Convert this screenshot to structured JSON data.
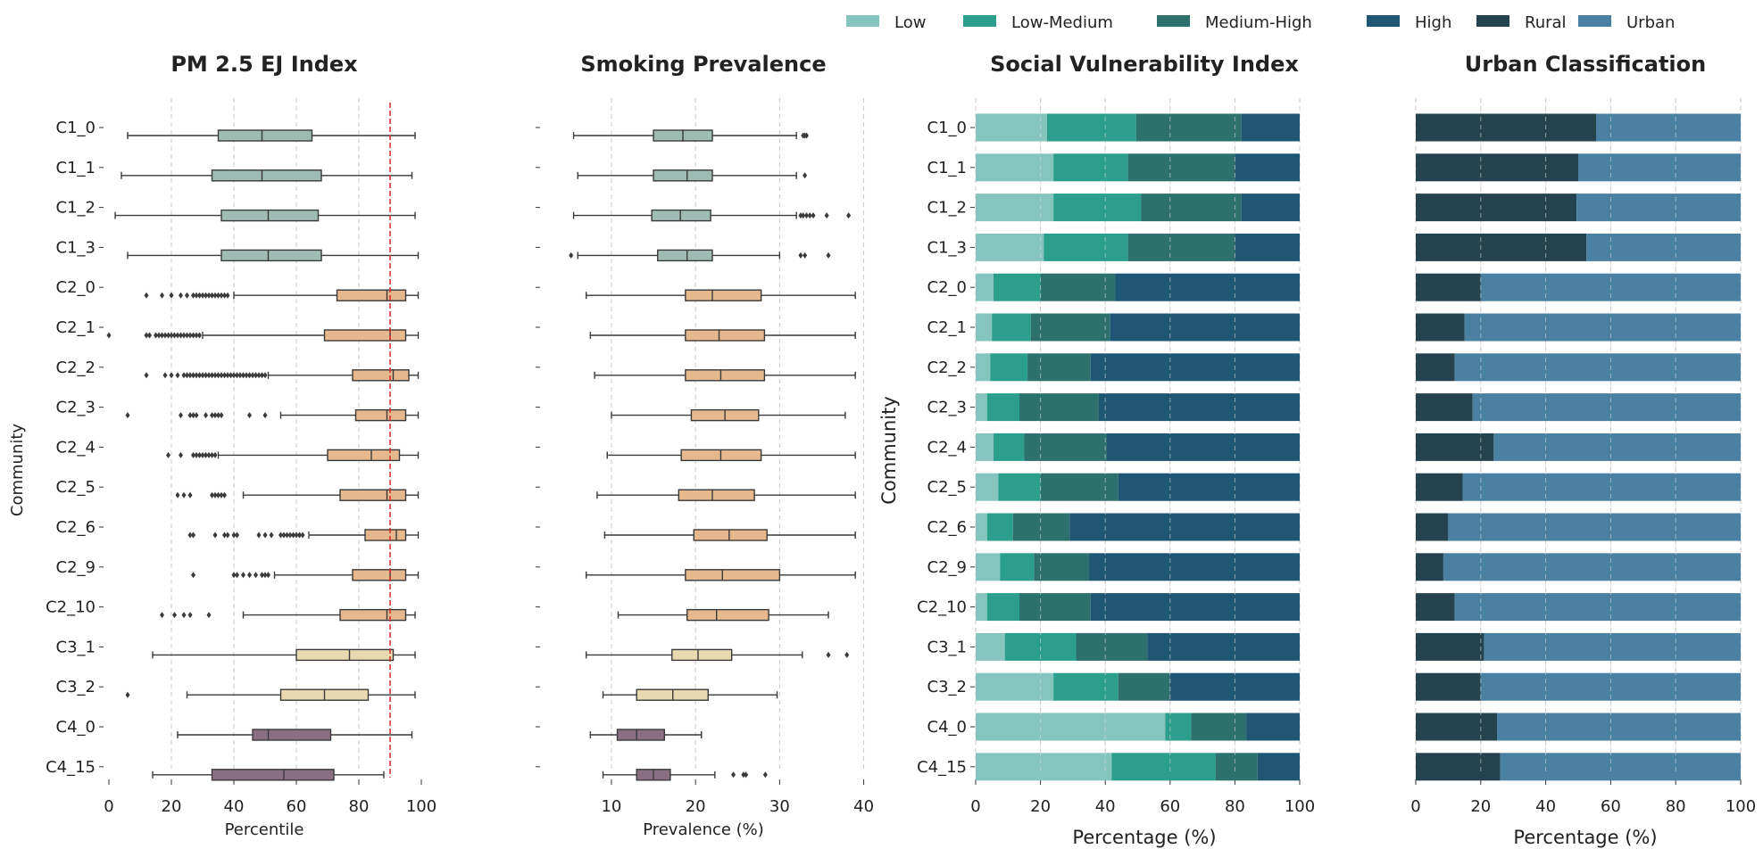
{
  "chart_data": [
    {
      "type": "boxplot",
      "title": "PM 2.5 EJ Index",
      "xlabel": "Percentile",
      "ylabel": "Community",
      "xlim": [
        0,
        100
      ],
      "xticks": [
        0,
        20,
        40,
        60,
        80,
        100
      ],
      "reference_line": 90,
      "categories": [
        "C1_0",
        "C1_1",
        "C1_2",
        "C1_3",
        "C2_0",
        "C2_1",
        "C2_2",
        "C2_3",
        "C2_4",
        "C2_5",
        "C2_6",
        "C2_9",
        "C2_10",
        "C3_1",
        "C3_2",
        "C4_0",
        "C4_15"
      ],
      "boxes": [
        {
          "min": 6,
          "q1": 35,
          "median": 49,
          "q3": 65,
          "max": 98,
          "color": "#9fbcb4",
          "outliers": []
        },
        {
          "min": 4,
          "q1": 33,
          "median": 49,
          "q3": 68,
          "max": 97,
          "color": "#9fbcb4",
          "outliers": []
        },
        {
          "min": 2,
          "q1": 36,
          "median": 51,
          "q3": 67,
          "max": 98,
          "color": "#9fbcb4",
          "outliers": []
        },
        {
          "min": 6,
          "q1": 36,
          "median": 51,
          "q3": 68,
          "max": 99,
          "color": "#9fbcb4",
          "outliers": []
        },
        {
          "min": 40,
          "q1": 73,
          "median": 89,
          "q3": 95,
          "max": 99,
          "color": "#e6b88d",
          "outliers": [
            12,
            17,
            20,
            23,
            25,
            27,
            28,
            29,
            30,
            31,
            32,
            33,
            34,
            35,
            36,
            37,
            38
          ]
        },
        {
          "min": 30,
          "q1": 69,
          "median": 90,
          "q3": 95,
          "max": 99,
          "color": "#e6b88d",
          "outliers": [
            0,
            12,
            13,
            15,
            16,
            17,
            18,
            19,
            20,
            21,
            22,
            23,
            24,
            25,
            26,
            27,
            28,
            29
          ]
        },
        {
          "min": 51,
          "q1": 78,
          "median": 91,
          "q3": 96,
          "max": 99,
          "color": "#e6b88d",
          "outliers": [
            12,
            18,
            20,
            22,
            24,
            25,
            26,
            27,
            28,
            29,
            30,
            31,
            32,
            33,
            34,
            35,
            36,
            37,
            38,
            39,
            40,
            41,
            42,
            43,
            44,
            45,
            46,
            47,
            48,
            49,
            50
          ]
        },
        {
          "min": 55,
          "q1": 79,
          "median": 89,
          "q3": 95,
          "max": 99,
          "color": "#e6b88d",
          "outliers": [
            6,
            23,
            26,
            27,
            28,
            31,
            33,
            34,
            35,
            36,
            45,
            50
          ]
        },
        {
          "min": 35,
          "q1": 70,
          "median": 84,
          "q3": 93,
          "max": 99,
          "color": "#e6b88d",
          "outliers": [
            19,
            23,
            27,
            28,
            29,
            30,
            31,
            32,
            33,
            34
          ]
        },
        {
          "min": 43,
          "q1": 74,
          "median": 89,
          "q3": 95,
          "max": 99,
          "color": "#e6b88d",
          "outliers": [
            22,
            24,
            26,
            33,
            34,
            35,
            36,
            37
          ]
        },
        {
          "min": 64,
          "q1": 82,
          "median": 92,
          "q3": 95,
          "max": 99,
          "color": "#e6b88d",
          "outliers": [
            26,
            27,
            34,
            37,
            38,
            40,
            41,
            48,
            50,
            52,
            55,
            56,
            57,
            58,
            59,
            60,
            61,
            62
          ]
        },
        {
          "min": 53,
          "q1": 78,
          "median": 90,
          "q3": 95,
          "max": 99,
          "color": "#e6b88d",
          "outliers": [
            27,
            40,
            41,
            43,
            45,
            47,
            49,
            50,
            51
          ]
        },
        {
          "min": 43,
          "q1": 74,
          "median": 89,
          "q3": 95,
          "max": 98,
          "color": "#e6b88d",
          "outliers": [
            17,
            21,
            24,
            26,
            32
          ]
        },
        {
          "min": 14,
          "q1": 60,
          "median": 77,
          "q3": 91,
          "max": 98,
          "color": "#e8d9b0",
          "outliers": []
        },
        {
          "min": 25,
          "q1": 55,
          "median": 69,
          "q3": 83,
          "max": 98,
          "color": "#e8d9b0",
          "outliers": [
            6
          ]
        },
        {
          "min": 22,
          "q1": 46,
          "median": 51,
          "q3": 71,
          "max": 97,
          "color": "#8a6e82",
          "outliers": []
        },
        {
          "min": 14,
          "q1": 33,
          "median": 56,
          "q3": 72,
          "max": 88,
          "color": "#8a6e82",
          "outliers": []
        }
      ]
    },
    {
      "type": "boxplot",
      "title": "Smoking Prevalence",
      "xlabel": "Prevalence (%)",
      "xlim": [
        3,
        41
      ],
      "xticks": [
        10,
        20,
        30,
        40
      ],
      "categories": [
        "C1_0",
        "C1_1",
        "C1_2",
        "C1_3",
        "C2_0",
        "C2_1",
        "C2_2",
        "C2_3",
        "C2_4",
        "C2_5",
        "C2_6",
        "C2_9",
        "C2_10",
        "C3_1",
        "C3_2",
        "C4_0",
        "C4_15"
      ],
      "boxes": [
        {
          "min": 5.5,
          "q1": 15,
          "median": 18.5,
          "q3": 22,
          "max": 32,
          "color": "#9fbcb4",
          "outliers": [
            32.8,
            33,
            33.2
          ]
        },
        {
          "min": 6,
          "q1": 15,
          "median": 19,
          "q3": 22,
          "max": 32,
          "color": "#9fbcb4",
          "outliers": [
            33
          ]
        },
        {
          "min": 5.5,
          "q1": 14.8,
          "median": 18.2,
          "q3": 21.8,
          "max": 32,
          "color": "#9fbcb4",
          "outliers": [
            32.5,
            32.8,
            33.2,
            33.6,
            34,
            35.6,
            38.2
          ]
        },
        {
          "min": 6,
          "q1": 15.5,
          "median": 19,
          "q3": 22,
          "max": 30,
          "color": "#9fbcb4",
          "outliers": [
            5.2,
            32.5,
            33,
            35.8
          ]
        },
        {
          "min": 7,
          "q1": 18.8,
          "median": 22,
          "q3": 27.8,
          "max": 39,
          "color": "#e6b88d",
          "outliers": []
        },
        {
          "min": 7.5,
          "q1": 18.8,
          "median": 22.8,
          "q3": 28.2,
          "max": 39,
          "color": "#e6b88d",
          "outliers": []
        },
        {
          "min": 8,
          "q1": 18.8,
          "median": 23,
          "q3": 28.2,
          "max": 39,
          "color": "#e6b88d",
          "outliers": []
        },
        {
          "min": 10,
          "q1": 19.5,
          "median": 23.5,
          "q3": 27.5,
          "max": 37.8,
          "color": "#e6b88d",
          "outliers": []
        },
        {
          "min": 9.5,
          "q1": 18.3,
          "median": 23,
          "q3": 27.8,
          "max": 39,
          "color": "#e6b88d",
          "outliers": []
        },
        {
          "min": 8.3,
          "q1": 18,
          "median": 22,
          "q3": 27,
          "max": 39,
          "color": "#e6b88d",
          "outliers": []
        },
        {
          "min": 9.2,
          "q1": 19.8,
          "median": 24,
          "q3": 28.5,
          "max": 39,
          "color": "#e6b88d",
          "outliers": []
        },
        {
          "min": 7,
          "q1": 18.8,
          "median": 23.2,
          "q3": 30,
          "max": 39,
          "color": "#e6b88d",
          "outliers": []
        },
        {
          "min": 10.8,
          "q1": 19,
          "median": 22.5,
          "q3": 28.7,
          "max": 35.8,
          "color": "#e6b88d",
          "outliers": []
        },
        {
          "min": 7,
          "q1": 17.2,
          "median": 20.3,
          "q3": 24.3,
          "max": 32.7,
          "color": "#e8d9b0",
          "outliers": [
            35.8,
            38
          ]
        },
        {
          "min": 9,
          "q1": 13,
          "median": 17.3,
          "q3": 21.5,
          "max": 29.7,
          "color": "#e8d9b0",
          "outliers": []
        },
        {
          "min": 7.5,
          "q1": 10.7,
          "median": 13,
          "q3": 16.3,
          "max": 20.7,
          "color": "#8a6e82",
          "outliers": []
        },
        {
          "min": 9,
          "q1": 13,
          "median": 15,
          "q3": 17,
          "max": 22.3,
          "color": "#8a6e82",
          "outliers": [
            24.5,
            25.7,
            26,
            28.3
          ]
        }
      ]
    },
    {
      "type": "stacked_bar_horizontal",
      "title": "Social Vulnerability Index",
      "xlabel": "Percentage (%)",
      "ylabel": "Community",
      "xlim": [
        0,
        100
      ],
      "xticks": [
        0,
        20,
        40,
        60,
        80,
        100
      ],
      "categories": [
        "C1_0",
        "C1_1",
        "C1_2",
        "C1_3",
        "C2_0",
        "C2_1",
        "C2_2",
        "C2_3",
        "C2_4",
        "C2_5",
        "C2_6",
        "C2_9",
        "C2_10",
        "C3_1",
        "C3_2",
        "C4_0",
        "C4_15"
      ],
      "series": [
        {
          "name": "Low",
          "color": "#86c5bd",
          "values": [
            22,
            24,
            24,
            21,
            5.5,
            5,
            4.5,
            3.5,
            5.5,
            7,
            3.5,
            7.5,
            3.5,
            9,
            24,
            58.5,
            42
          ]
        },
        {
          "name": "Low-Medium",
          "color": "#2b9e8e",
          "values": [
            27.5,
            23,
            27,
            26,
            14.5,
            12,
            11.5,
            10,
            9.5,
            13,
            8,
            10.5,
            10,
            22,
            20,
            8,
            32
          ]
        },
        {
          "name": "Medium-High",
          "color": "#2c716d",
          "values": [
            32.5,
            33,
            31,
            33,
            23,
            24.5,
            19.5,
            24.5,
            25.5,
            24,
            17.5,
            17,
            22,
            22,
            16,
            17,
            13
          ]
        },
        {
          "name": "High",
          "color": "#1f5673",
          "values": [
            18,
            20,
            18,
            20,
            57,
            58.5,
            64.5,
            62,
            59.5,
            56,
            71,
            65,
            64.5,
            47,
            40,
            16.5,
            13
          ]
        }
      ]
    },
    {
      "type": "stacked_bar_horizontal",
      "title": "Urban Classification",
      "xlabel": "Percentage (%)",
      "xlim": [
        0,
        100
      ],
      "xticks": [
        0,
        20,
        40,
        60,
        80,
        100
      ],
      "categories": [
        "C1_0",
        "C1_1",
        "C1_2",
        "C1_3",
        "C2_0",
        "C2_1",
        "C2_2",
        "C2_3",
        "C2_4",
        "C2_5",
        "C2_6",
        "C2_9",
        "C2_10",
        "C3_1",
        "C3_2",
        "C4_0",
        "C4_15"
      ],
      "series": [
        {
          "name": "Rural",
          "color": "#25434f",
          "values": [
            55.5,
            50,
            49.5,
            52.5,
            20,
            15,
            12,
            17.5,
            24,
            14.5,
            10,
            8.5,
            12,
            21,
            20,
            25,
            26
          ]
        },
        {
          "name": "Urban",
          "color": "#4a80a2",
          "values": [
            44.5,
            50,
            50.5,
            47.5,
            80,
            85,
            88,
            82.5,
            76,
            85.5,
            90,
            91.5,
            88,
            79,
            80,
            75,
            74
          ]
        }
      ]
    }
  ],
  "legend": [
    {
      "label": "Low",
      "color": "#86c5bd"
    },
    {
      "label": "Low-Medium",
      "color": "#2b9e8e"
    },
    {
      "label": "Medium-High",
      "color": "#2c716d"
    },
    {
      "label": "High",
      "color": "#1f5673"
    },
    {
      "label": "Rural",
      "color": "#25434f"
    },
    {
      "label": "Urban",
      "color": "#4a80a2"
    }
  ]
}
